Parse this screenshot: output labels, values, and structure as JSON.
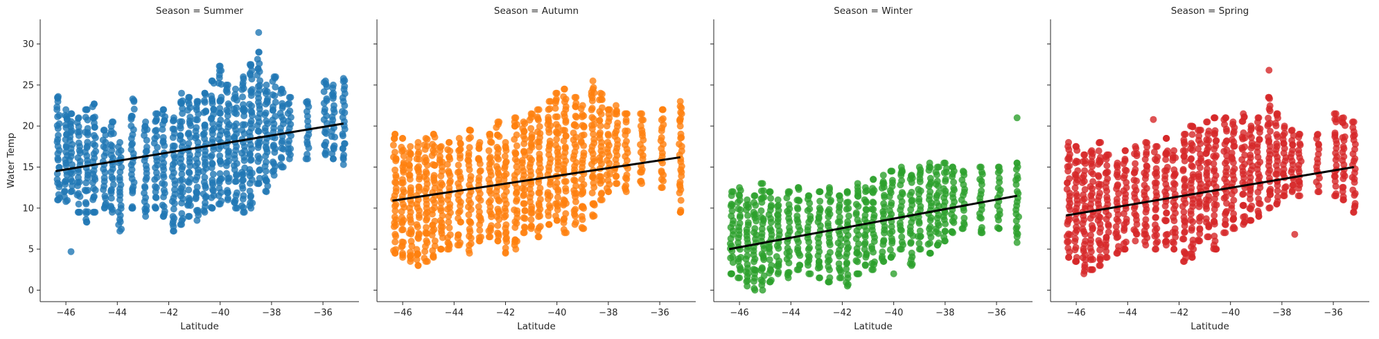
{
  "chart_data": [
    {
      "type": "scatter",
      "title": "Season = Summer",
      "xlabel": "Latitude",
      "ylabel": "Water Temp",
      "xlim": [
        -47,
        -34.6
      ],
      "ylim": [
        -1.4,
        33
      ],
      "xticks": [
        -46,
        -44,
        -42,
        -40,
        -38,
        -36
      ],
      "yticks": [
        0,
        5,
        10,
        15,
        20,
        25,
        30
      ],
      "color": "#1f77b4",
      "regression": {
        "x": [
          -46.4,
          -35.2
        ],
        "y": [
          14.5,
          20.3
        ]
      },
      "columns": [
        {
          "x": -46.3,
          "ymin": 11.0,
          "ymax": 23.6
        },
        {
          "x": -46.0,
          "ymin": 10.8,
          "ymax": 22.0
        },
        {
          "x": -45.8,
          "ymin": 12.0,
          "ymax": 21.5
        },
        {
          "x": -45.5,
          "ymin": 9.5,
          "ymax": 21.0
        },
        {
          "x": -45.2,
          "ymin": 8.3,
          "ymax": 22.0
        },
        {
          "x": -44.9,
          "ymin": 9.5,
          "ymax": 22.7
        },
        {
          "x": -44.5,
          "ymin": 10.0,
          "ymax": 19.5
        },
        {
          "x": -44.2,
          "ymin": 9.5,
          "ymax": 20.5
        },
        {
          "x": -43.9,
          "ymin": 7.2,
          "ymax": 18.0
        },
        {
          "x": -43.4,
          "ymin": 10.0,
          "ymax": 23.3
        },
        {
          "x": -42.9,
          "ymin": 9.0,
          "ymax": 20.5
        },
        {
          "x": -42.5,
          "ymin": 10.0,
          "ymax": 21.5
        },
        {
          "x": -42.2,
          "ymin": 9.0,
          "ymax": 22.0
        },
        {
          "x": -41.8,
          "ymin": 7.2,
          "ymax": 21.0
        },
        {
          "x": -41.5,
          "ymin": 8.0,
          "ymax": 24.0
        },
        {
          "x": -41.2,
          "ymin": 9.0,
          "ymax": 23.5
        },
        {
          "x": -40.9,
          "ymin": 8.5,
          "ymax": 23.0
        },
        {
          "x": -40.6,
          "ymin": 9.5,
          "ymax": 24.0
        },
        {
          "x": -40.3,
          "ymin": 10.0,
          "ymax": 25.5
        },
        {
          "x": -40.0,
          "ymin": 10.5,
          "ymax": 27.3
        },
        {
          "x": -39.7,
          "ymin": 11.0,
          "ymax": 25.0
        },
        {
          "x": -39.4,
          "ymin": 10.0,
          "ymax": 24.5
        },
        {
          "x": -39.1,
          "ymin": 9.5,
          "ymax": 26.0
        },
        {
          "x": -38.8,
          "ymin": 10.0,
          "ymax": 27.5
        },
        {
          "x": -38.5,
          "ymin": 13.0,
          "ymax": 29.0
        },
        {
          "x": -38.2,
          "ymin": 12.0,
          "ymax": 25.0
        },
        {
          "x": -37.9,
          "ymin": 14.0,
          "ymax": 26.0
        },
        {
          "x": -37.6,
          "ymin": 15.0,
          "ymax": 24.5
        },
        {
          "x": -37.3,
          "ymin": 16.0,
          "ymax": 23.5
        },
        {
          "x": -36.6,
          "ymin": 16.0,
          "ymax": 23.0
        },
        {
          "x": -35.9,
          "ymin": 16.5,
          "ymax": 25.5
        },
        {
          "x": -35.6,
          "ymin": 16.0,
          "ymax": 25.0
        },
        {
          "x": -35.2,
          "ymin": 15.3,
          "ymax": 25.8
        }
      ],
      "outliers": [
        {
          "x": -45.8,
          "y": 4.7
        },
        {
          "x": -38.5,
          "y": 31.4
        }
      ]
    },
    {
      "type": "scatter",
      "title": "Season = Autumn",
      "xlabel": "Latitude",
      "ylabel": "",
      "xlim": [
        -47,
        -34.6
      ],
      "ylim": [
        -1.4,
        33
      ],
      "xticks": [
        -46,
        -44,
        -42,
        -40,
        -38,
        -36
      ],
      "yticks": [
        0,
        5,
        10,
        15,
        20,
        25,
        30
      ],
      "color": "#ff7f0e",
      "regression": {
        "x": [
          -46.4,
          -35.2
        ],
        "y": [
          10.9,
          16.2
        ]
      },
      "columns": [
        {
          "x": -46.3,
          "ymin": 4.5,
          "ymax": 19.0
        },
        {
          "x": -46.0,
          "ymin": 4.0,
          "ymax": 18.5
        },
        {
          "x": -45.7,
          "ymin": 3.5,
          "ymax": 17.5
        },
        {
          "x": -45.4,
          "ymin": 3.0,
          "ymax": 18.0
        },
        {
          "x": -45.1,
          "ymin": 3.5,
          "ymax": 18.5
        },
        {
          "x": -44.8,
          "ymin": 4.0,
          "ymax": 19.0
        },
        {
          "x": -44.5,
          "ymin": 5.0,
          "ymax": 17.5
        },
        {
          "x": -44.2,
          "ymin": 5.0,
          "ymax": 18.0
        },
        {
          "x": -43.8,
          "ymin": 5.5,
          "ymax": 18.5
        },
        {
          "x": -43.4,
          "ymin": 4.5,
          "ymax": 19.5
        },
        {
          "x": -43.0,
          "ymin": 6.0,
          "ymax": 18.0
        },
        {
          "x": -42.6,
          "ymin": 6.5,
          "ymax": 19.0
        },
        {
          "x": -42.3,
          "ymin": 6.0,
          "ymax": 20.5
        },
        {
          "x": -42.0,
          "ymin": 4.5,
          "ymax": 18.0
        },
        {
          "x": -41.6,
          "ymin": 5.0,
          "ymax": 21.0
        },
        {
          "x": -41.3,
          "ymin": 7.0,
          "ymax": 20.5
        },
        {
          "x": -41.0,
          "ymin": 7.5,
          "ymax": 21.5
        },
        {
          "x": -40.7,
          "ymin": 6.5,
          "ymax": 22.0
        },
        {
          "x": -40.3,
          "ymin": 8.0,
          "ymax": 23.0
        },
        {
          "x": -40.0,
          "ymin": 8.5,
          "ymax": 24.0
        },
        {
          "x": -39.7,
          "ymin": 7.0,
          "ymax": 24.5
        },
        {
          "x": -39.3,
          "ymin": 8.0,
          "ymax": 23.5
        },
        {
          "x": -39.0,
          "ymin": 7.5,
          "ymax": 22.5
        },
        {
          "x": -38.6,
          "ymin": 9.0,
          "ymax": 25.5
        },
        {
          "x": -38.3,
          "ymin": 11.0,
          "ymax": 24.0
        },
        {
          "x": -38.0,
          "ymin": 12.0,
          "ymax": 22.0
        },
        {
          "x": -37.7,
          "ymin": 13.0,
          "ymax": 22.5
        },
        {
          "x": -37.3,
          "ymin": 12.0,
          "ymax": 21.5
        },
        {
          "x": -36.7,
          "ymin": 13.0,
          "ymax": 21.5
        },
        {
          "x": -35.9,
          "ymin": 12.5,
          "ymax": 22.0
        },
        {
          "x": -35.2,
          "ymin": 9.5,
          "ymax": 23.0
        }
      ],
      "outliers": []
    },
    {
      "type": "scatter",
      "title": "Season = Winter",
      "xlabel": "Latitude",
      "ylabel": "",
      "xlim": [
        -47,
        -34.6
      ],
      "ylim": [
        -1.4,
        33
      ],
      "xticks": [
        -46,
        -44,
        -42,
        -40,
        -38,
        -36
      ],
      "yticks": [
        0,
        5,
        10,
        15,
        20,
        25,
        30
      ],
      "color": "#2ca02c",
      "regression": {
        "x": [
          -46.4,
          -35.2
        ],
        "y": [
          5.0,
          11.5
        ]
      },
      "columns": [
        {
          "x": -46.3,
          "ymin": 2.0,
          "ymax": 12.0
        },
        {
          "x": -46.0,
          "ymin": 1.5,
          "ymax": 12.5
        },
        {
          "x": -45.7,
          "ymin": 0.5,
          "ymax": 11.0
        },
        {
          "x": -45.4,
          "ymin": 0.0,
          "ymax": 11.5
        },
        {
          "x": -45.1,
          "ymin": 0.0,
          "ymax": 13.0
        },
        {
          "x": -44.8,
          "ymin": 1.0,
          "ymax": 12.0
        },
        {
          "x": -44.5,
          "ymin": 2.0,
          "ymax": 11.0
        },
        {
          "x": -44.1,
          "ymin": 1.5,
          "ymax": 12.0
        },
        {
          "x": -43.7,
          "ymin": 2.5,
          "ymax": 12.5
        },
        {
          "x": -43.3,
          "ymin": 2.0,
          "ymax": 11.5
        },
        {
          "x": -42.9,
          "ymin": 1.5,
          "ymax": 12.0
        },
        {
          "x": -42.5,
          "ymin": 1.0,
          "ymax": 12.5
        },
        {
          "x": -42.1,
          "ymin": 1.5,
          "ymax": 11.5
        },
        {
          "x": -41.8,
          "ymin": 0.5,
          "ymax": 12.0
        },
        {
          "x": -41.4,
          "ymin": 2.0,
          "ymax": 13.0
        },
        {
          "x": -41.1,
          "ymin": 3.0,
          "ymax": 12.5
        },
        {
          "x": -40.8,
          "ymin": 2.5,
          "ymax": 13.5
        },
        {
          "x": -40.4,
          "ymin": 3.5,
          "ymax": 14.0
        },
        {
          "x": -40.1,
          "ymin": 4.0,
          "ymax": 14.5
        },
        {
          "x": -39.7,
          "ymin": 5.0,
          "ymax": 15.0
        },
        {
          "x": -39.3,
          "ymin": 3.0,
          "ymax": 14.0
        },
        {
          "x": -39.0,
          "ymin": 5.0,
          "ymax": 15.0
        },
        {
          "x": -38.6,
          "ymin": 4.5,
          "ymax": 15.5
        },
        {
          "x": -38.3,
          "ymin": 5.5,
          "ymax": 15.0
        },
        {
          "x": -38.0,
          "ymin": 6.0,
          "ymax": 15.5
        },
        {
          "x": -37.7,
          "ymin": 7.0,
          "ymax": 15.0
        },
        {
          "x": -37.3,
          "ymin": 7.5,
          "ymax": 14.5
        },
        {
          "x": -36.6,
          "ymin": 7.0,
          "ymax": 15.0
        },
        {
          "x": -35.9,
          "ymin": 7.5,
          "ymax": 15.0
        },
        {
          "x": -35.2,
          "ymin": 6.5,
          "ymax": 15.5
        }
      ],
      "outliers": [
        {
          "x": -35.2,
          "y": 21.0
        },
        {
          "x": -35.2,
          "y": 5.8
        },
        {
          "x": -40.0,
          "y": 2.0
        }
      ]
    },
    {
      "type": "scatter",
      "title": "Season = Spring",
      "xlabel": "Latitude",
      "ylabel": "",
      "xlim": [
        -47,
        -34.6
      ],
      "ylim": [
        -1.4,
        33
      ],
      "xticks": [
        -46,
        -44,
        -42,
        -40,
        -38,
        -36
      ],
      "yticks": [
        0,
        5,
        10,
        15,
        20,
        25,
        30
      ],
      "color": "#d62728",
      "regression": {
        "x": [
          -46.4,
          -35.2
        ],
        "y": [
          9.1,
          15.0
        ]
      },
      "columns": [
        {
          "x": -46.3,
          "ymin": 4.0,
          "ymax": 18.0
        },
        {
          "x": -46.0,
          "ymin": 3.5,
          "ymax": 17.5
        },
        {
          "x": -45.7,
          "ymin": 2.0,
          "ymax": 16.5
        },
        {
          "x": -45.4,
          "ymin": 2.5,
          "ymax": 17.0
        },
        {
          "x": -45.1,
          "ymin": 3.0,
          "ymax": 18.0
        },
        {
          "x": -44.8,
          "ymin": 4.0,
          "ymax": 16.5
        },
        {
          "x": -44.4,
          "ymin": 4.5,
          "ymax": 15.5
        },
        {
          "x": -44.1,
          "ymin": 5.0,
          "ymax": 17.0
        },
        {
          "x": -43.7,
          "ymin": 6.0,
          "ymax": 17.5
        },
        {
          "x": -43.3,
          "ymin": 5.5,
          "ymax": 18.0
        },
        {
          "x": -42.9,
          "ymin": 5.0,
          "ymax": 17.5
        },
        {
          "x": -42.5,
          "ymin": 5.5,
          "ymax": 18.5
        },
        {
          "x": -42.2,
          "ymin": 5.0,
          "ymax": 17.0
        },
        {
          "x": -41.8,
          "ymin": 3.5,
          "ymax": 19.0
        },
        {
          "x": -41.5,
          "ymin": 4.0,
          "ymax": 20.0
        },
        {
          "x": -41.2,
          "ymin": 6.0,
          "ymax": 19.5
        },
        {
          "x": -40.9,
          "ymin": 6.5,
          "ymax": 20.5
        },
        {
          "x": -40.6,
          "ymin": 5.0,
          "ymax": 21.0
        },
        {
          "x": -40.2,
          "ymin": 7.0,
          "ymax": 21.0
        },
        {
          "x": -39.9,
          "ymin": 7.5,
          "ymax": 20.5
        },
        {
          "x": -39.5,
          "ymin": 8.0,
          "ymax": 21.5
        },
        {
          "x": -39.2,
          "ymin": 8.5,
          "ymax": 20.0
        },
        {
          "x": -38.9,
          "ymin": 9.0,
          "ymax": 21.0
        },
        {
          "x": -38.5,
          "ymin": 10.0,
          "ymax": 23.5
        },
        {
          "x": -38.2,
          "ymin": 10.5,
          "ymax": 21.5
        },
        {
          "x": -37.9,
          "ymin": 11.5,
          "ymax": 20.0
        },
        {
          "x": -37.6,
          "ymin": 12.0,
          "ymax": 19.5
        },
        {
          "x": -37.3,
          "ymin": 11.5,
          "ymax": 19.0
        },
        {
          "x": -36.6,
          "ymin": 12.0,
          "ymax": 19.0
        },
        {
          "x": -35.9,
          "ymin": 11.5,
          "ymax": 21.5
        },
        {
          "x": -35.6,
          "ymin": 11.0,
          "ymax": 21.0
        },
        {
          "x": -35.2,
          "ymin": 9.5,
          "ymax": 20.5
        }
      ],
      "outliers": [
        {
          "x": -38.5,
          "y": 26.8
        },
        {
          "x": -43.0,
          "y": 20.8
        },
        {
          "x": -37.5,
          "y": 6.8
        }
      ]
    }
  ]
}
